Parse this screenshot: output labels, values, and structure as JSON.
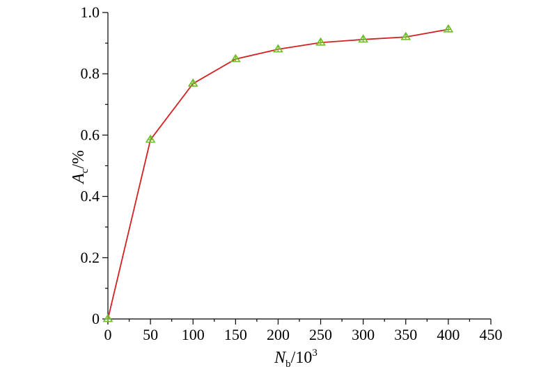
{
  "chart_data": {
    "type": "line",
    "title": "",
    "xlabel": {
      "main": "N",
      "sub": "b",
      "rest": "/10",
      "sup": "3"
    },
    "ylabel": {
      "main": "A",
      "sub": "c",
      "rest": "/%"
    },
    "xlim": [
      0,
      450
    ],
    "ylim": [
      0,
      1.0
    ],
    "x_ticks": [
      0,
      50,
      100,
      150,
      200,
      250,
      300,
      350,
      400,
      450
    ],
    "x_tick_labels": [
      "0",
      "50",
      "100",
      "150",
      "200",
      "250",
      "300",
      "350",
      "400",
      "450"
    ],
    "y_ticks": [
      0,
      0.2,
      0.4,
      0.6,
      0.8,
      1.0
    ],
    "y_tick_labels": [
      "0",
      "0.2",
      "0.4",
      "0.6",
      "0.8",
      "1.0"
    ],
    "grid": false,
    "legend": "none",
    "series": [
      {
        "color": "#d42020",
        "marker": "triangle-cross",
        "marker_color": "#6dbb2c",
        "x": [
          0,
          50,
          100,
          150,
          200,
          250,
          300,
          350,
          400
        ],
        "y": [
          0,
          0.585,
          0.768,
          0.848,
          0.88,
          0.902,
          0.912,
          0.92,
          0.945
        ]
      }
    ]
  }
}
